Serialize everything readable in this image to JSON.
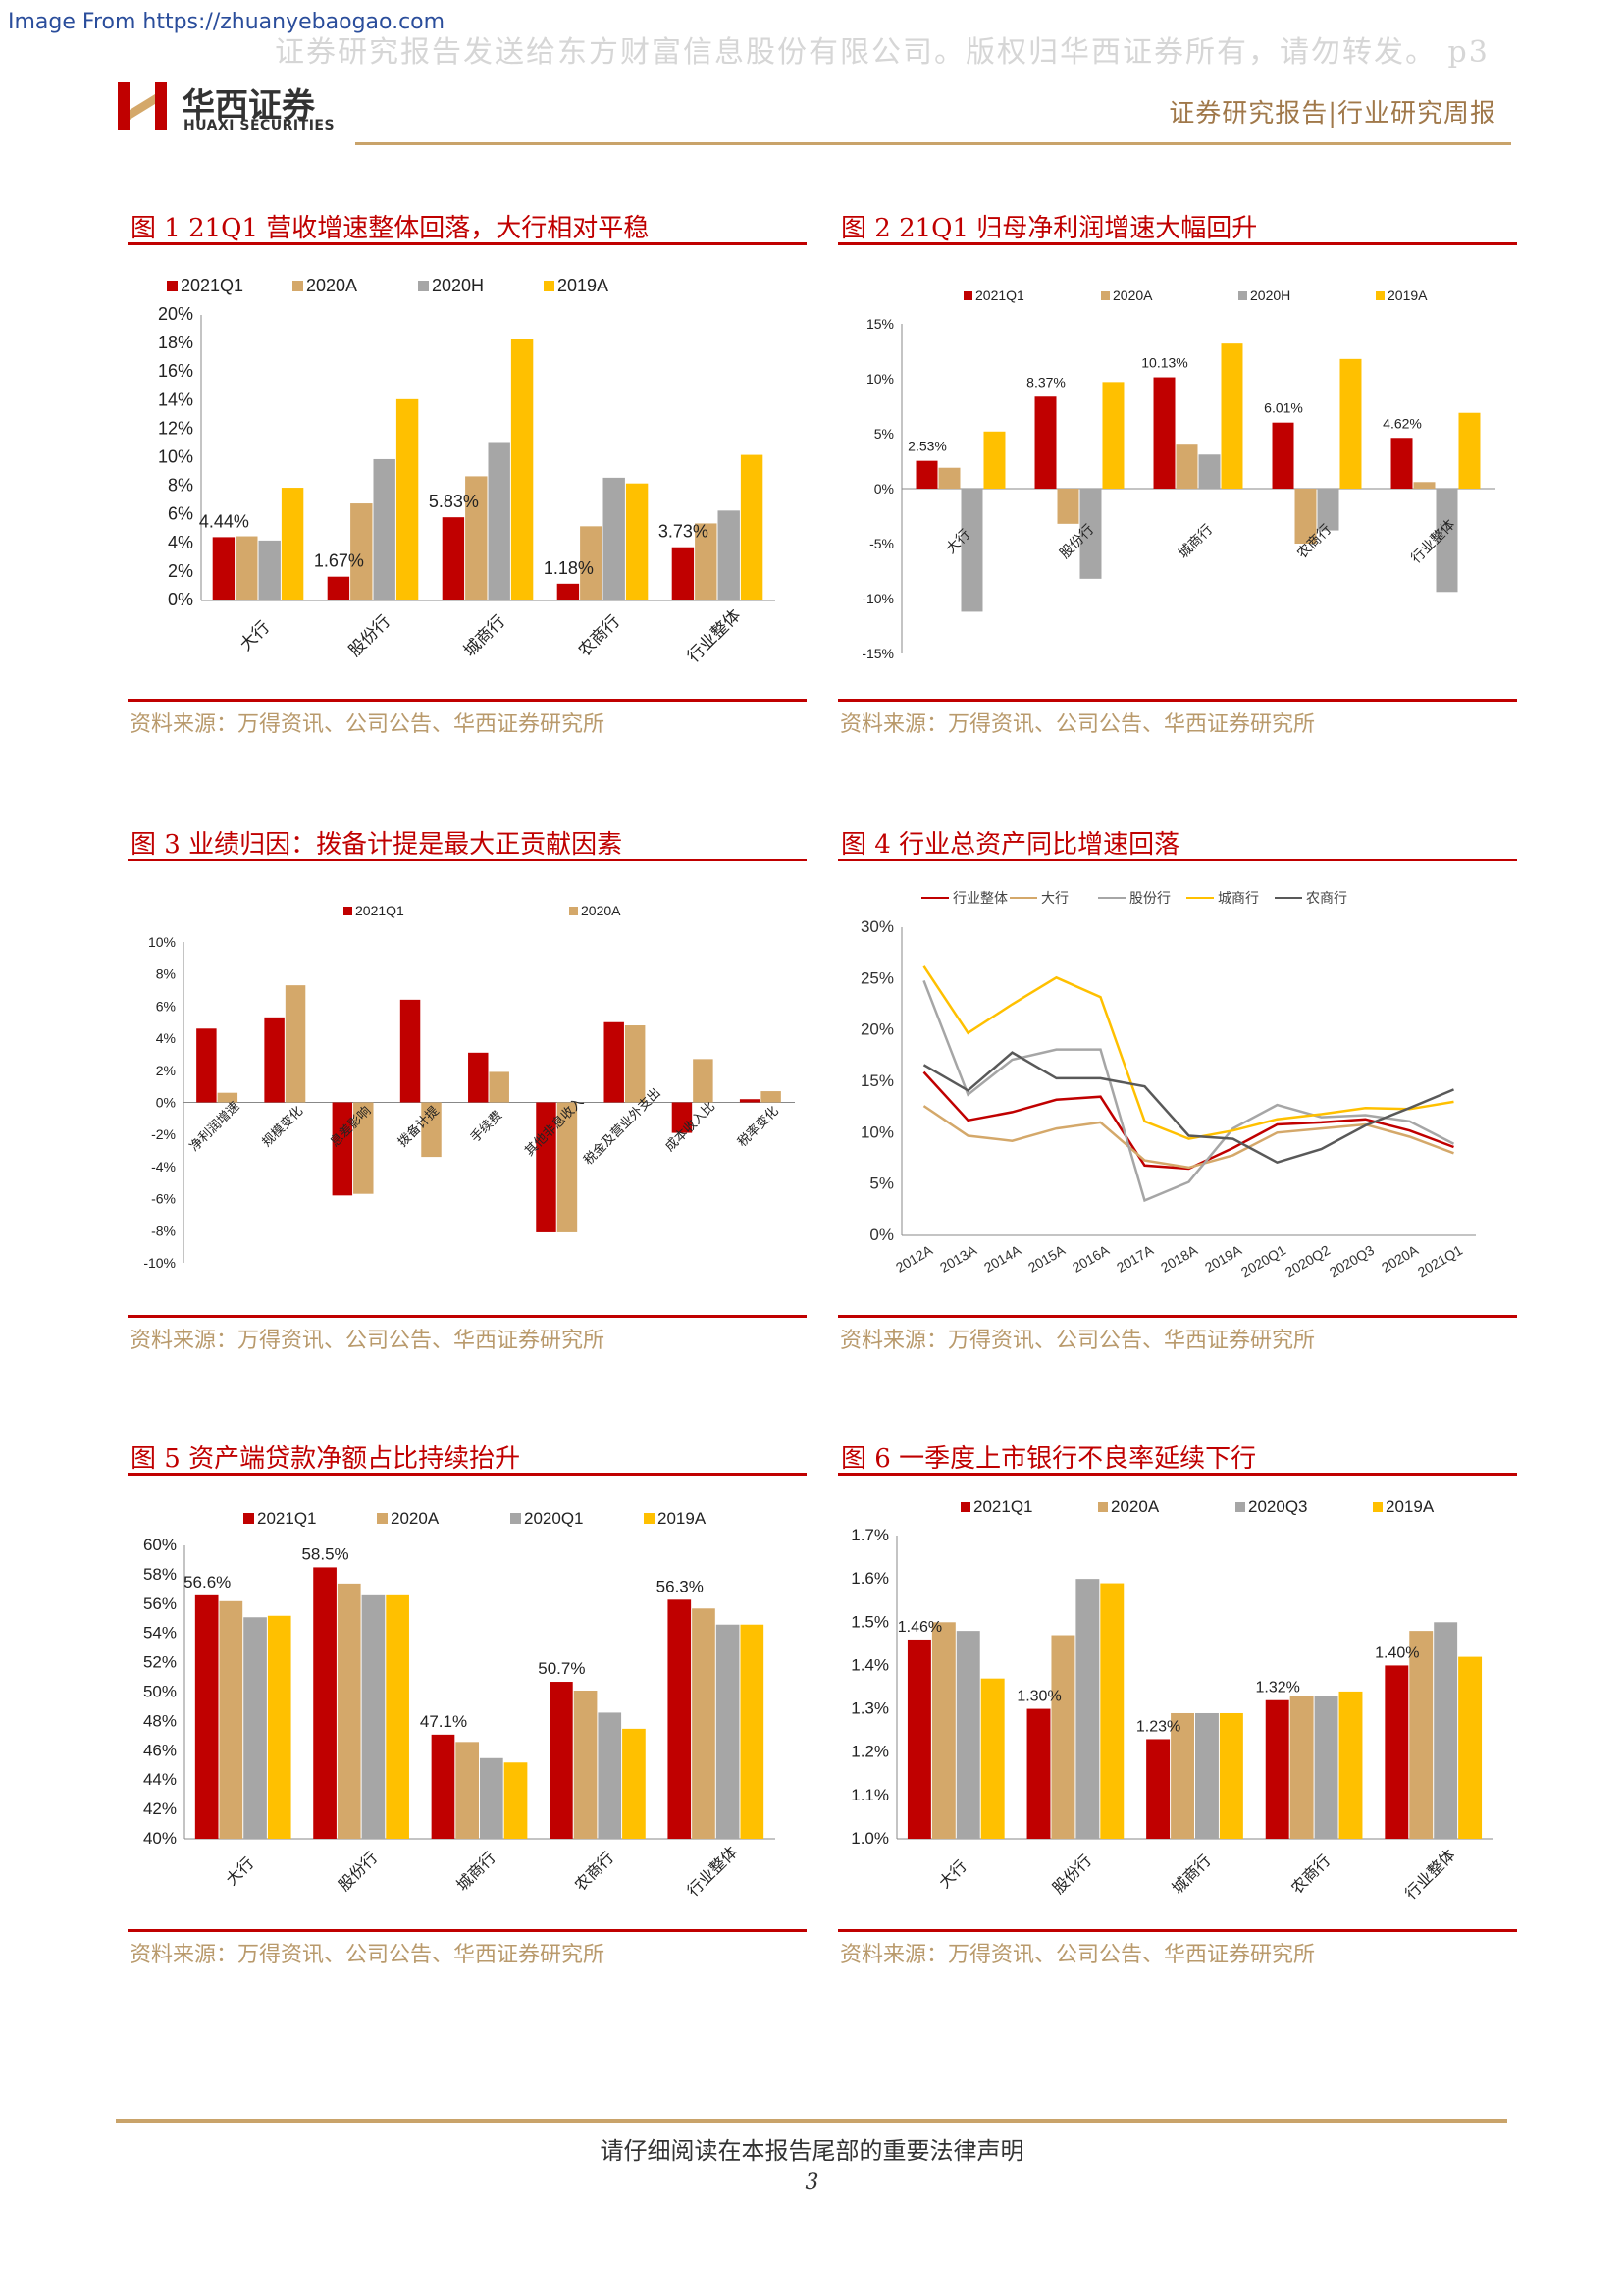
{
  "header": {
    "source_url": "Image From https://zhuanyebaogao.com",
    "watermark": "证券研究报告发送给东方财富信息股份有限公司。版权归华西证券所有，请勿转发。 p3",
    "logo_name": "华西证券",
    "logo_sub": "HUAXI SECURITIES",
    "report_type": "证券研究报告|行业研究周报"
  },
  "colors": {
    "red": "#c00000",
    "tan": "#d4a86a",
    "gray": "#a6a6a6",
    "gold": "#ffc000",
    "darkgray": "#595959"
  },
  "figures": [
    {
      "title": "图 1   21Q1 营收增速整体回落，大行相对平稳",
      "source": "资料来源：万得资讯、公司公告、华西证券研究所"
    },
    {
      "title": "图 2   21Q1 归母净利润增速大幅回升",
      "source": "资料来源：万得资讯、公司公告、华西证券研究所"
    },
    {
      "title": "图 3   业绩归因：拨备计提是最大正贡献因素",
      "source": "资料来源：万得资讯、公司公告、华西证券研究所"
    },
    {
      "title": "图 4   行业总资产同比增速回落",
      "source": "资料来源：万得资讯、公司公告、华西证券研究所"
    },
    {
      "title": "图 5   资产端贷款净额占比持续抬升",
      "source": "资料来源：万得资讯、公司公告、华西证券研究所"
    },
    {
      "title": "图 6   一季度上市银行不良率延续下行",
      "source": "资料来源：万得资讯、公司公告、华西证券研究所"
    }
  ],
  "chart_data": [
    {
      "type": "bar",
      "categories": [
        "大行",
        "股份行",
        "城商行",
        "农商行",
        "行业整体"
      ],
      "series": [
        {
          "name": "2021Q1",
          "values": [
            4.44,
            1.67,
            5.83,
            1.18,
            3.73
          ]
        },
        {
          "name": "2020A",
          "values": [
            4.5,
            6.8,
            8.7,
            5.2,
            5.4
          ]
        },
        {
          "name": "2020H",
          "values": [
            4.2,
            9.9,
            11.1,
            8.6,
            6.3
          ]
        },
        {
          "name": "2019A",
          "values": [
            7.9,
            14.1,
            18.3,
            8.2,
            10.2
          ]
        }
      ],
      "data_labels": [
        "4.44%",
        "1.67%",
        "5.83%",
        "1.18%",
        "3.73%"
      ],
      "ylim": [
        0,
        20
      ],
      "yticks": [
        "0%",
        "2%",
        "4%",
        "6%",
        "8%",
        "10%",
        "12%",
        "14%",
        "16%",
        "18%",
        "20%"
      ]
    },
    {
      "type": "bar",
      "categories": [
        "大行",
        "股份行",
        "城商行",
        "农商行",
        "行业整体"
      ],
      "series": [
        {
          "name": "2021Q1",
          "values": [
            2.53,
            8.37,
            10.13,
            6.01,
            4.62
          ]
        },
        {
          "name": "2020A",
          "values": [
            1.9,
            -3.2,
            4.0,
            -5.0,
            0.6
          ]
        },
        {
          "name": "2020H",
          "values": [
            -11.2,
            -8.2,
            3.1,
            -3.8,
            -9.4
          ]
        },
        {
          "name": "2019A",
          "values": [
            5.2,
            9.7,
            13.2,
            11.8,
            6.9
          ]
        }
      ],
      "data_labels": [
        "2.53%",
        "8.37%",
        "10.13%",
        "6.01%",
        "4.62%"
      ],
      "ylim": [
        -15,
        15
      ],
      "yticks": [
        "-15%",
        "-10%",
        "-5%",
        "0%",
        "5%",
        "10%",
        "15%"
      ]
    },
    {
      "type": "bar",
      "categories": [
        "净利润增速",
        "规模变化",
        "息差影响",
        "拨备计提",
        "手续费",
        "其他非息收入",
        "税金及营业外支出",
        "成本收入比",
        "税率变化"
      ],
      "series": [
        {
          "name": "2021Q1",
          "values": [
            4.6,
            5.3,
            -5.8,
            6.4,
            3.1,
            -8.1,
            5.0,
            -1.9,
            0.2
          ]
        },
        {
          "name": "2020A",
          "values": [
            0.6,
            7.3,
            -5.7,
            -3.4,
            1.9,
            -8.1,
            4.8,
            2.7,
            0.7
          ]
        }
      ],
      "ylim": [
        -10,
        10
      ],
      "yticks": [
        "-10%",
        "-8%",
        "-6%",
        "-4%",
        "-2%",
        "0%",
        "2%",
        "4%",
        "6%",
        "8%",
        "10%"
      ]
    },
    {
      "type": "line",
      "x": [
        "2012A",
        "2013A",
        "2014A",
        "2015A",
        "2016A",
        "2017A",
        "2018A",
        "2019A",
        "2020Q1",
        "2020Q2",
        "2020Q3",
        "2020A",
        "2021Q1"
      ],
      "series": [
        {
          "name": "行业整体",
          "values": [
            15.9,
            11.2,
            12.0,
            13.2,
            13.5,
            6.8,
            6.5,
            8.5,
            10.8,
            11.0,
            11.3,
            10.2,
            8.6
          ]
        },
        {
          "name": "大行",
          "values": [
            12.6,
            9.7,
            9.2,
            10.4,
            11.0,
            7.3,
            6.6,
            7.8,
            10.0,
            10.4,
            10.8,
            9.6,
            8.0
          ]
        },
        {
          "name": "股份行",
          "values": [
            24.8,
            13.7,
            17.1,
            18.1,
            18.1,
            3.4,
            5.2,
            10.4,
            12.7,
            11.5,
            11.7,
            11.1,
            8.9
          ]
        },
        {
          "name": "城商行",
          "values": [
            26.2,
            19.7,
            22.5,
            25.1,
            23.2,
            11.1,
            9.4,
            10.2,
            11.3,
            11.8,
            12.4,
            12.3,
            13.0
          ]
        },
        {
          "name": "农商行",
          "values": [
            16.6,
            14.1,
            17.8,
            15.3,
            15.3,
            14.5,
            9.7,
            9.4,
            7.1,
            8.4,
            10.7,
            12.4,
            14.2
          ]
        }
      ],
      "ylim": [
        0,
        30
      ],
      "yticks": [
        "0%",
        "5%",
        "10%",
        "15%",
        "20%",
        "25%",
        "30%"
      ]
    },
    {
      "type": "bar",
      "categories": [
        "大行",
        "股份行",
        "城商行",
        "农商行",
        "行业整体"
      ],
      "series": [
        {
          "name": "2021Q1",
          "values": [
            56.6,
            58.5,
            47.1,
            50.7,
            56.3
          ]
        },
        {
          "name": "2020A",
          "values": [
            56.2,
            57.4,
            46.6,
            50.1,
            55.7
          ]
        },
        {
          "name": "2020Q1",
          "values": [
            55.1,
            56.6,
            45.5,
            48.6,
            54.6
          ]
        },
        {
          "name": "2019A",
          "values": [
            55.2,
            56.6,
            45.2,
            47.5,
            54.6
          ]
        }
      ],
      "data_labels": [
        "56.6%",
        "58.5%",
        "47.1%",
        "50.7%",
        "56.3%"
      ],
      "ylim": [
        40,
        60
      ],
      "yticks": [
        "40%",
        "42%",
        "44%",
        "46%",
        "48%",
        "50%",
        "52%",
        "54%",
        "56%",
        "58%",
        "60%"
      ]
    },
    {
      "type": "bar",
      "categories": [
        "大行",
        "股份行",
        "城商行",
        "农商行",
        "行业整体"
      ],
      "series": [
        {
          "name": "2021Q1",
          "values": [
            1.46,
            1.3,
            1.23,
            1.32,
            1.4
          ]
        },
        {
          "name": "2020A",
          "values": [
            1.5,
            1.47,
            1.29,
            1.33,
            1.48
          ]
        },
        {
          "name": "2020Q3",
          "values": [
            1.48,
            1.6,
            1.29,
            1.33,
            1.5
          ]
        },
        {
          "name": "2019A",
          "values": [
            1.37,
            1.59,
            1.29,
            1.34,
            1.42
          ]
        }
      ],
      "data_labels": [
        "1.46%",
        "1.30%",
        "1.23%",
        "1.32%",
        "1.40%"
      ],
      "ylim": [
        1.0,
        1.7
      ],
      "yticks": [
        "1.0%",
        "1.1%",
        "1.2%",
        "1.3%",
        "1.4%",
        "1.5%",
        "1.6%",
        "1.7%"
      ]
    }
  ],
  "footer": {
    "notice": "请仔细阅读在本报告尾部的重要法律声明",
    "page": "3"
  }
}
